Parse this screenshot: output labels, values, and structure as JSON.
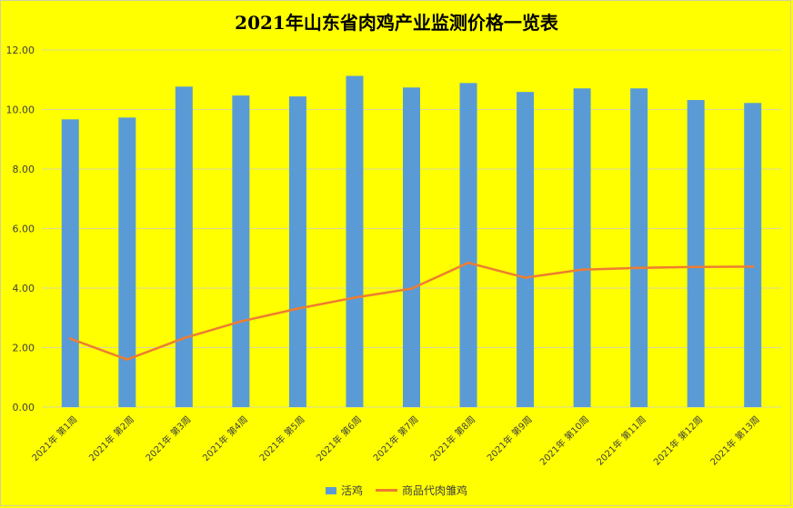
{
  "chart_data": {
    "type": "bar",
    "title": "2021年山东省肉鸡产业监测价格一览表",
    "categories": [
      "2021年 第1周",
      "2021年 第2周",
      "2021年 第3周",
      "2021年 第4周",
      "2021年 第5周",
      "2021年 第6周",
      "2021年 第7周",
      "2021年 第8周",
      "2021年 第9周",
      "2021年 第10周",
      "2021年 第11周",
      "2021年 第12周",
      "2021年 第13周"
    ],
    "series": [
      {
        "name": "活鸡",
        "type": "bar",
        "color": "#5b9bd5",
        "values": [
          9.67,
          9.73,
          10.77,
          10.47,
          10.44,
          11.13,
          10.74,
          10.89,
          10.59,
          10.71,
          10.71,
          10.32,
          10.22
        ]
      },
      {
        "name": "商品代肉雏鸡",
        "type": "line",
        "color": "#ed7d31",
        "values": [
          2.3,
          1.6,
          2.32,
          2.88,
          3.31,
          3.68,
          3.98,
          4.85,
          4.35,
          4.62,
          4.68,
          4.71,
          4.72
        ]
      }
    ],
    "ylim": [
      0,
      12
    ],
    "yticks": [
      "0.00",
      "2.00",
      "4.00",
      "6.00",
      "8.00",
      "10.00",
      "12.00"
    ],
    "grid": true,
    "legend_position": "bottom"
  }
}
